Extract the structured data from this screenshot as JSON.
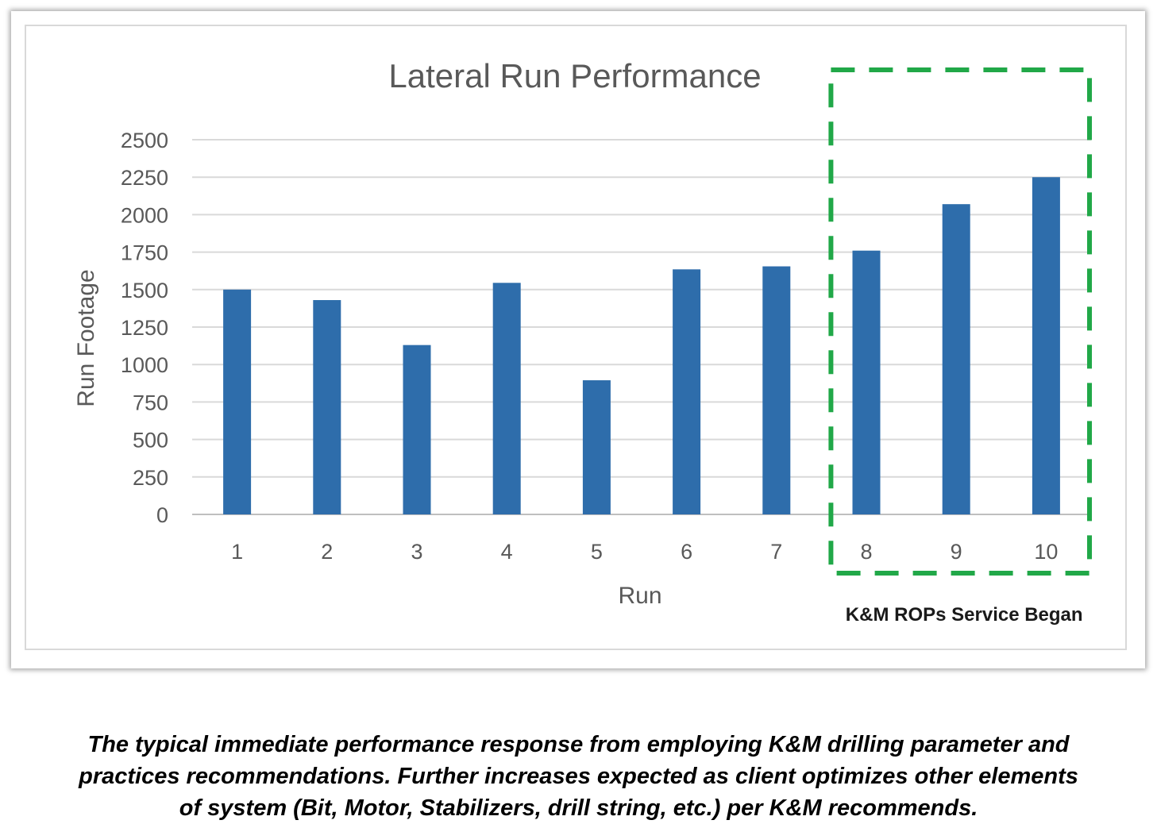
{
  "chart_data": {
    "type": "bar",
    "title": "Lateral Run Performance",
    "xlabel": "Run",
    "ylabel": "Run Footage",
    "categories": [
      "1",
      "2",
      "3",
      "4",
      "5",
      "6",
      "7",
      "8",
      "9",
      "10"
    ],
    "values": [
      1500,
      1430,
      1130,
      1545,
      895,
      1635,
      1655,
      1760,
      2070,
      2250
    ],
    "ylim": [
      0,
      2500
    ],
    "yticks": [
      "0",
      "250",
      "500",
      "750",
      "1000",
      "1250",
      "1500",
      "1750",
      "2000",
      "2250",
      "2500"
    ],
    "grid": true,
    "bar_color": "#2E6DAB",
    "highlight": {
      "from_category": "8",
      "to_category": "10",
      "color": "#21A848",
      "label": "K&M ROPs Service Began"
    }
  },
  "caption": {
    "lines": [
      "The typical immediate performance response from employing K&M drilling parameter and",
      "practices recommendations. Further increases expected as client optimizes other elements",
      "of system (Bit, Motor, Stabilizers, drill string, etc.) per K&M recommends."
    ]
  }
}
